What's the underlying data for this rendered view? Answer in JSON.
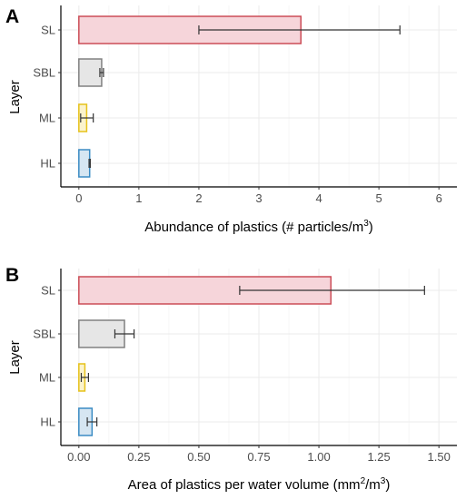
{
  "chart_data": [
    {
      "panel": "A",
      "type": "bar",
      "orientation": "horizontal",
      "categories": [
        "SL",
        "SBL",
        "ML",
        "HL"
      ],
      "values": [
        3.7,
        0.38,
        0.13,
        0.18
      ],
      "error_low": [
        2.0,
        0.35,
        0.03,
        0.17
      ],
      "error_high": [
        5.35,
        0.41,
        0.24,
        0.19
      ],
      "colors": {
        "fill": [
          "#f6d5da",
          "#e6e6e6",
          "#fbf3cc",
          "#d6e6f2"
        ],
        "stroke": [
          "#cc4d57",
          "#808080",
          "#e6c21a",
          "#3b8cc4"
        ]
      },
      "xlabel": "Abundance of plastics (# particles/m",
      "xlabel_sup": "3",
      "xlabel_close": ")",
      "ylabel": "Layer",
      "xlim": [
        -0.3,
        6.3
      ],
      "xticks": [
        0,
        1,
        2,
        3,
        4,
        5,
        6
      ],
      "xtick_labels": [
        "0",
        "1",
        "2",
        "3",
        "4",
        "5",
        "6"
      ],
      "grid": true
    },
    {
      "panel": "B",
      "type": "bar",
      "orientation": "horizontal",
      "categories": [
        "SL",
        "SBL",
        "ML",
        "HL"
      ],
      "values": [
        1.05,
        0.19,
        0.025,
        0.055
      ],
      "error_low": [
        0.67,
        0.15,
        0.01,
        0.035
      ],
      "error_high": [
        1.44,
        0.23,
        0.04,
        0.075
      ],
      "colors": {
        "fill": [
          "#f6d5da",
          "#e6e6e6",
          "#fbf3cc",
          "#d6e6f2"
        ],
        "stroke": [
          "#cc4d57",
          "#808080",
          "#e6c21a",
          "#3b8cc4"
        ]
      },
      "xlabel": "Area of plastics per water volume (mm",
      "xlabel_sup": "2",
      "xlabel_mid": "/m",
      "xlabel_sup2": "3",
      "xlabel_close": ")",
      "ylabel": "Layer",
      "xlim": [
        -0.075,
        1.575
      ],
      "xticks": [
        0,
        0.25,
        0.5,
        0.75,
        1.0,
        1.25,
        1.5
      ],
      "xtick_labels": [
        "0.00",
        "0.25",
        "0.50",
        "0.75",
        "1.00",
        "1.25",
        "1.50"
      ],
      "grid": true
    }
  ]
}
